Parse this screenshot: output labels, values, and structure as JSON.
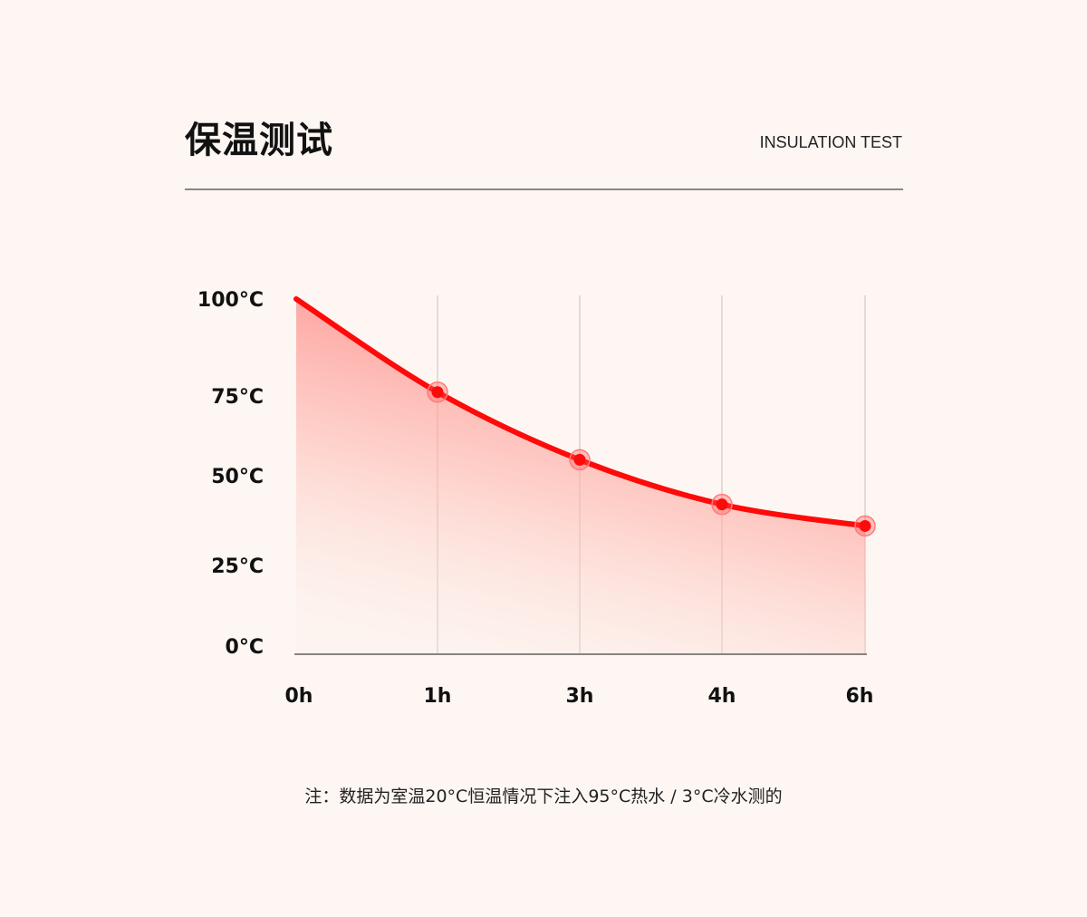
{
  "header": {
    "title": "保温测试",
    "subtitle": "INSULATION TEST"
  },
  "note": "注：数据为室温20°C恒温情况下注入95°C热水 / 3°C冷水测的",
  "chart_data": {
    "type": "area",
    "title": "",
    "xlabel": "",
    "ylabel": "",
    "categories": [
      "0h",
      "1h",
      "3h",
      "4h",
      "6h"
    ],
    "values": [
      100,
      76,
      55,
      42,
      36
    ],
    "markers_on": [
      "1h",
      "3h",
      "4h",
      "6h"
    ],
    "y_ticks": [
      0,
      25,
      50,
      75,
      100
    ],
    "y_tick_labels": [
      "0°C",
      "25°C",
      "50°C",
      "75°C",
      "100°C"
    ],
    "ylim": [
      0,
      100
    ],
    "grid": "vertical",
    "legend": "none",
    "colors": {
      "line": "#ff0a0a",
      "fill": "#ff6b6b",
      "grid": "#dcd2cc",
      "axis": "#8a8480"
    }
  }
}
